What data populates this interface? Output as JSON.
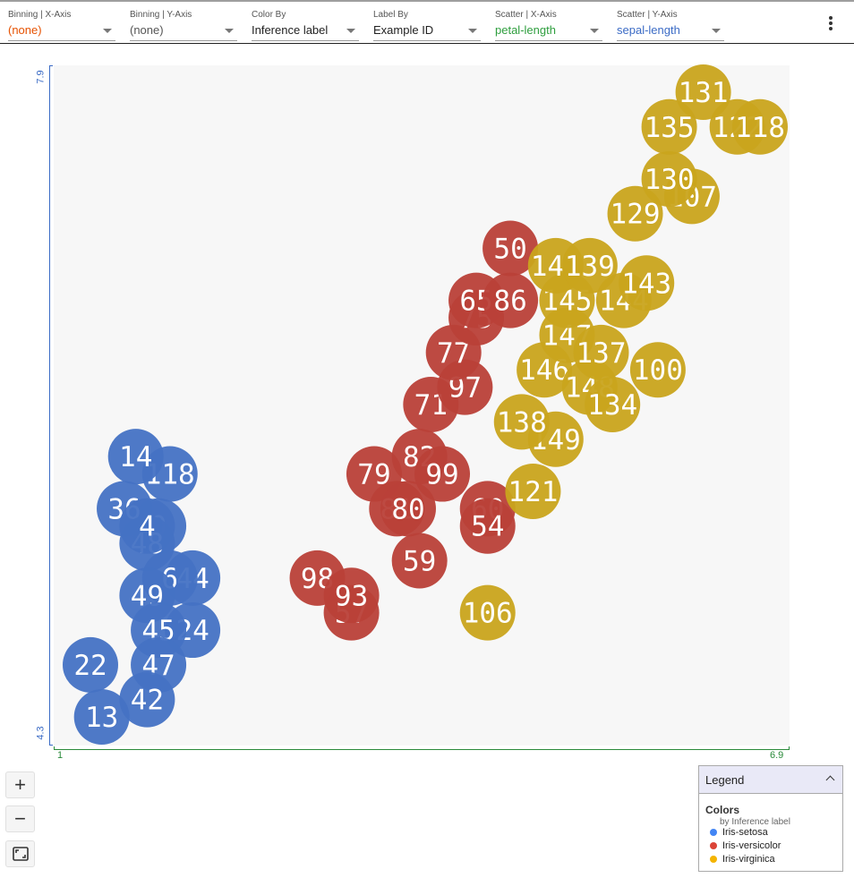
{
  "toolbar": {
    "dropdowns": [
      {
        "label": "Binning | X-Axis",
        "value": "(none)",
        "color": "#e65100"
      },
      {
        "label": "Binning | Y-Axis",
        "value": "(none)",
        "color": "#555555"
      },
      {
        "label": "Color By",
        "value": "Inference label",
        "color": "#222222"
      },
      {
        "label": "Label By",
        "value": "Example ID",
        "color": "#222222"
      },
      {
        "label": "Scatter | X-Axis",
        "value": "petal-length",
        "color": "#2e9e3e"
      },
      {
        "label": "Scatter | Y-Axis",
        "value": "sepal-length",
        "color": "#3b6bc5"
      }
    ],
    "menu_icon": "more-vert-icon"
  },
  "axes": {
    "y_min_label": "4.3",
    "y_max_label": "7.9",
    "x_min_label": "1",
    "x_max_label": "6.9"
  },
  "zoom": {
    "zoom_in": "+",
    "zoom_out": "−",
    "fit_icon": "fit-screen-icon"
  },
  "legend": {
    "header": "Legend",
    "title": "Colors",
    "subtitle": "by Inference label",
    "items": [
      {
        "label": "Iris-setosa",
        "color": "#4285f4"
      },
      {
        "label": "Iris-versicolor",
        "color": "#db4437"
      },
      {
        "label": "Iris-virginica",
        "color": "#f4b400"
      }
    ]
  },
  "chart_data": {
    "type": "scatter",
    "xlabel": "petal-length",
    "ylabel": "sepal-length",
    "xlim": [
      1,
      6.9
    ],
    "ylim": [
      4.3,
      7.9
    ],
    "series_colors": {
      "setosa": "#4472c4",
      "versicolor": "#b94038",
      "virginica": "#c9a41c"
    },
    "points": [
      {
        "id": "118",
        "x": 1.7,
        "y": 5.7,
        "cls": "setosa"
      },
      {
        "id": "14",
        "x": 1.4,
        "y": 5.8,
        "cls": "setosa"
      },
      {
        "id": "0",
        "x": 1.6,
        "y": 5.4,
        "cls": "setosa"
      },
      {
        "id": "36",
        "x": 1.3,
        "y": 5.5,
        "cls": "setosa"
      },
      {
        "id": "48",
        "x": 1.5,
        "y": 5.3,
        "cls": "setosa"
      },
      {
        "id": "4",
        "x": 1.5,
        "y": 5.4,
        "cls": "setosa"
      },
      {
        "id": "44",
        "x": 1.9,
        "y": 5.1,
        "cls": "setosa"
      },
      {
        "id": "6",
        "x": 1.7,
        "y": 5.1,
        "cls": "setosa"
      },
      {
        "id": "49",
        "x": 1.5,
        "y": 5.0,
        "cls": "setosa"
      },
      {
        "id": "24",
        "x": 1.9,
        "y": 4.8,
        "cls": "setosa"
      },
      {
        "id": "45",
        "x": 1.6,
        "y": 4.8,
        "cls": "setosa"
      },
      {
        "id": "22",
        "x": 1.0,
        "y": 4.6,
        "cls": "setosa"
      },
      {
        "id": "47",
        "x": 1.6,
        "y": 4.6,
        "cls": "setosa"
      },
      {
        "id": "42",
        "x": 1.5,
        "y": 4.4,
        "cls": "setosa"
      },
      {
        "id": "13",
        "x": 1.1,
        "y": 4.3,
        "cls": "setosa"
      },
      {
        "id": "98",
        "x": 3.0,
        "y": 5.1,
        "cls": "versicolor"
      },
      {
        "id": "57",
        "x": 3.3,
        "y": 4.9,
        "cls": "versicolor"
      },
      {
        "id": "93",
        "x": 3.3,
        "y": 5.0,
        "cls": "versicolor"
      },
      {
        "id": "59",
        "x": 3.9,
        "y": 5.2,
        "cls": "versicolor"
      },
      {
        "id": "79",
        "x": 3.5,
        "y": 5.7,
        "cls": "versicolor"
      },
      {
        "id": "82",
        "x": 3.9,
        "y": 5.8,
        "cls": "versicolor"
      },
      {
        "id": "81",
        "x": 3.7,
        "y": 5.5,
        "cls": "versicolor"
      },
      {
        "id": "80",
        "x": 3.8,
        "y": 5.5,
        "cls": "versicolor"
      },
      {
        "id": "99",
        "x": 4.1,
        "y": 5.7,
        "cls": "versicolor"
      },
      {
        "id": "60",
        "x": 4.5,
        "y": 5.5,
        "cls": "versicolor"
      },
      {
        "id": "54",
        "x": 4.5,
        "y": 5.4,
        "cls": "versicolor"
      },
      {
        "id": "71",
        "x": 4.0,
        "y": 6.1,
        "cls": "versicolor"
      },
      {
        "id": "97",
        "x": 4.3,
        "y": 6.2,
        "cls": "versicolor"
      },
      {
        "id": "77",
        "x": 4.2,
        "y": 6.4,
        "cls": "versicolor"
      },
      {
        "id": "75",
        "x": 4.4,
        "y": 6.6,
        "cls": "versicolor"
      },
      {
        "id": "65",
        "x": 4.4,
        "y": 6.7,
        "cls": "versicolor"
      },
      {
        "id": "86",
        "x": 4.7,
        "y": 6.7,
        "cls": "versicolor"
      },
      {
        "id": "50",
        "x": 4.7,
        "y": 7.0,
        "cls": "versicolor"
      },
      {
        "id": "106",
        "x": 4.5,
        "y": 4.9,
        "cls": "virginica"
      },
      {
        "id": "121",
        "x": 4.9,
        "y": 5.6,
        "cls": "virginica"
      },
      {
        "id": "149",
        "x": 5.1,
        "y": 5.9,
        "cls": "virginica"
      },
      {
        "id": "138",
        "x": 4.8,
        "y": 6.0,
        "cls": "virginica"
      },
      {
        "id": "146",
        "x": 5.0,
        "y": 6.3,
        "cls": "virginica"
      },
      {
        "id": "148",
        "x": 5.4,
        "y": 6.2,
        "cls": "virginica"
      },
      {
        "id": "147",
        "x": 5.2,
        "y": 6.5,
        "cls": "virginica"
      },
      {
        "id": "137",
        "x": 5.5,
        "y": 6.4,
        "cls": "virginica"
      },
      {
        "id": "100",
        "x": 6.0,
        "y": 6.3,
        "cls": "virginica"
      },
      {
        "id": "134",
        "x": 5.6,
        "y": 6.1,
        "cls": "virginica"
      },
      {
        "id": "145",
        "x": 5.2,
        "y": 6.7,
        "cls": "virginica"
      },
      {
        "id": "144",
        "x": 5.7,
        "y": 6.7,
        "cls": "virginica"
      },
      {
        "id": "143",
        "x": 5.9,
        "y": 6.8,
        "cls": "virginica"
      },
      {
        "id": "141",
        "x": 5.1,
        "y": 6.9,
        "cls": "virginica"
      },
      {
        "id": "139",
        "x": 5.4,
        "y": 6.9,
        "cls": "virginica"
      },
      {
        "id": "129",
        "x": 5.8,
        "y": 7.2,
        "cls": "virginica"
      },
      {
        "id": "107",
        "x": 6.3,
        "y": 7.3,
        "cls": "virginica"
      },
      {
        "id": "130",
        "x": 6.1,
        "y": 7.4,
        "cls": "virginica"
      },
      {
        "id": "122",
        "x": 6.7,
        "y": 7.7,
        "cls": "virginica"
      },
      {
        "id": "118",
        "x": 6.9,
        "y": 7.7,
        "cls": "virginica"
      },
      {
        "id": "135",
        "x": 6.1,
        "y": 7.7,
        "cls": "virginica"
      },
      {
        "id": "131",
        "x": 6.4,
        "y": 7.9,
        "cls": "virginica"
      }
    ]
  }
}
